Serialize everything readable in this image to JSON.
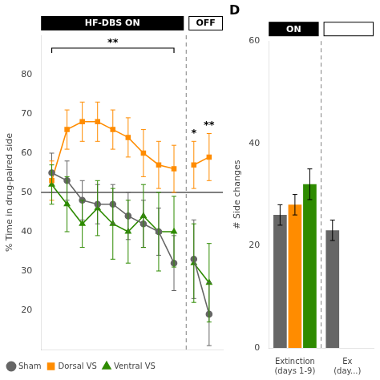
{
  "chart_data": [
    {
      "type": "line",
      "ylabel": "% Time in drug-paired side",
      "x": [
        1,
        2,
        3,
        4,
        5,
        6,
        7,
        8,
        9,
        10.3,
        11.3
      ],
      "series": [
        {
          "name": "Sham",
          "color": "#666666",
          "marker": "circle",
          "values": [
            55,
            53,
            48,
            47,
            47,
            44,
            42,
            40,
            32,
            33,
            19
          ],
          "errors": [
            5,
            5,
            5,
            5,
            5,
            6,
            6,
            6,
            7,
            10,
            8
          ]
        },
        {
          "name": "Dorsal VS",
          "color": "#ff8c00",
          "marker": "square",
          "values": [
            53,
            66,
            68,
            68,
            66,
            64,
            60,
            57,
            56,
            57,
            59
          ],
          "errors": [
            5,
            5,
            5,
            5,
            5,
            5,
            6,
            6,
            6,
            6,
            6
          ]
        },
        {
          "name": "Ventral VS",
          "color": "#2e8b00",
          "marker": "triangle",
          "values": [
            52,
            47,
            42,
            46,
            42,
            40,
            44,
            40,
            40,
            32,
            27
          ],
          "errors": [
            5,
            7,
            6,
            7,
            9,
            8,
            8,
            10,
            9,
            10,
            10
          ]
        }
      ],
      "xlim": [
        0.3,
        12.2
      ],
      "ylim": [
        10,
        90
      ],
      "yticks": [
        20,
        30,
        40,
        50,
        60,
        70,
        80
      ],
      "tick_labels": "y",
      "grid": false,
      "legend": "lower left",
      "hlines": [
        {
          "y": 50,
          "color": "black"
        }
      ],
      "vlines": [
        {
          "x": 9.8,
          "color": "gray",
          "line_style": "dashed"
        }
      ],
      "phases": [
        "HF-DBS ON",
        "OFF"
      ],
      "annotations": [
        {
          "text": "**",
          "x": [
            1,
            9
          ]
        },
        {
          "text": "*",
          "x": 10.3
        },
        {
          "text": "**",
          "x": 11.3
        }
      ]
    },
    {
      "type": "bar",
      "title": "D",
      "ylabel": "# Side changes",
      "categories": [
        "Extinction\n(days 1-9)",
        "Ex\n(day...)"
      ],
      "series": [
        {
          "name": "Sham",
          "color": "#666666",
          "values": [
            26,
            23
          ],
          "errors": [
            2,
            2
          ]
        },
        {
          "name": "Dorsal VS",
          "color": "#ff8c00",
          "values": [
            28,
            null
          ],
          "errors": [
            2,
            null
          ]
        },
        {
          "name": "Ventral VS",
          "color": "#2e8b00",
          "values": [
            32,
            null
          ],
          "errors": [
            3,
            null
          ]
        }
      ],
      "ylim": [
        0,
        60
      ],
      "yticks": [
        0,
        20,
        40,
        60
      ],
      "grid": false,
      "phases": [
        "ON",
        null
      ]
    }
  ]
}
